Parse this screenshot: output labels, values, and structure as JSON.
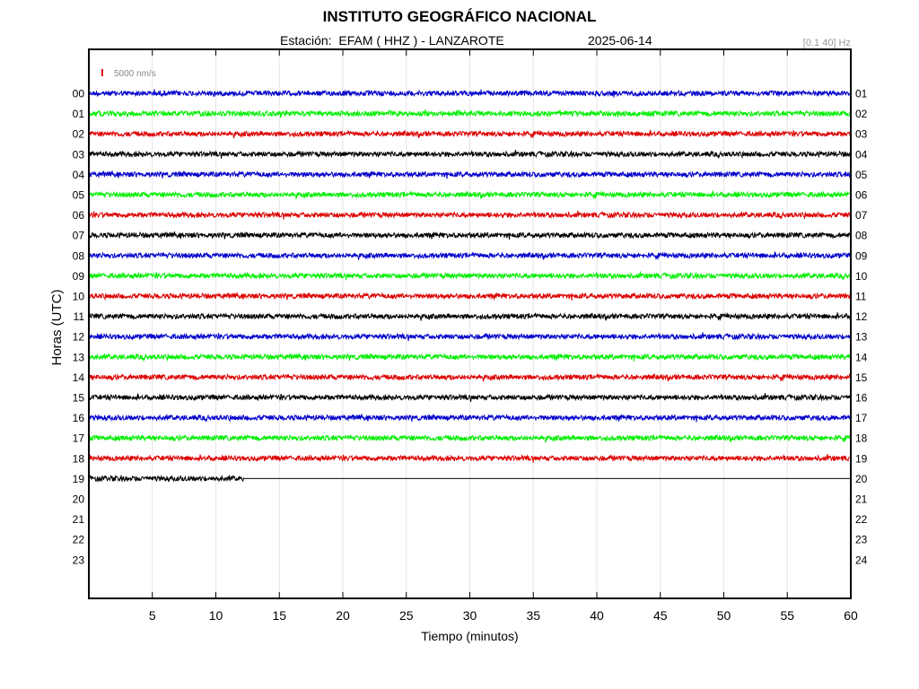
{
  "header": {
    "title": "INSTITUTO GEOGRÁFICO NACIONAL",
    "station": "Estación:  EFAM ( HHZ ) - LANZAROTE",
    "date": "2025-06-14",
    "filter": "[0.1 40] Hz"
  },
  "chart_data": {
    "type": "line",
    "title": "INSTITUTO GEOGRÁFICO NACIONAL",
    "xlabel": "Tiempo (minutos)",
    "ylabel": "Horas (UTC)",
    "xlim": [
      0,
      60
    ],
    "xticks": [
      5,
      10,
      15,
      20,
      25,
      30,
      35,
      40,
      45,
      50,
      55,
      60
    ],
    "grid": true,
    "left_labels": [
      "00",
      "01",
      "02",
      "03",
      "04",
      "05",
      "06",
      "07",
      "08",
      "09",
      "10",
      "11",
      "12",
      "13",
      "14",
      "15",
      "16",
      "17",
      "18",
      "19",
      "20",
      "21",
      "22",
      "23"
    ],
    "right_labels": [
      "01",
      "02",
      "03",
      "04",
      "05",
      "06",
      "07",
      "08",
      "09",
      "10",
      "11",
      "12",
      "13",
      "14",
      "15",
      "16",
      "17",
      "18",
      "19",
      "20",
      "21",
      "22",
      "23",
      "24"
    ],
    "scale_label": "5000 nm/s",
    "scale_color": "#e00000",
    "trace_colors": [
      "#0000cc",
      "#00ee00",
      "#dd0000",
      "#000000"
    ],
    "series": [
      {
        "hour": "00",
        "end_minute": 60
      },
      {
        "hour": "01",
        "end_minute": 60
      },
      {
        "hour": "02",
        "end_minute": 60
      },
      {
        "hour": "03",
        "end_minute": 60
      },
      {
        "hour": "04",
        "end_minute": 60
      },
      {
        "hour": "05",
        "end_minute": 60
      },
      {
        "hour": "06",
        "end_minute": 60
      },
      {
        "hour": "07",
        "end_minute": 60
      },
      {
        "hour": "08",
        "end_minute": 60
      },
      {
        "hour": "09",
        "end_minute": 60
      },
      {
        "hour": "10",
        "end_minute": 60
      },
      {
        "hour": "11",
        "end_minute": 60
      },
      {
        "hour": "12",
        "end_minute": 60
      },
      {
        "hour": "13",
        "end_minute": 60
      },
      {
        "hour": "14",
        "end_minute": 60
      },
      {
        "hour": "15",
        "end_minute": 60
      },
      {
        "hour": "16",
        "end_minute": 60
      },
      {
        "hour": "17",
        "end_minute": 60
      },
      {
        "hour": "18",
        "end_minute": 60
      },
      {
        "hour": "19",
        "end_minute": 12.2
      }
    ]
  }
}
